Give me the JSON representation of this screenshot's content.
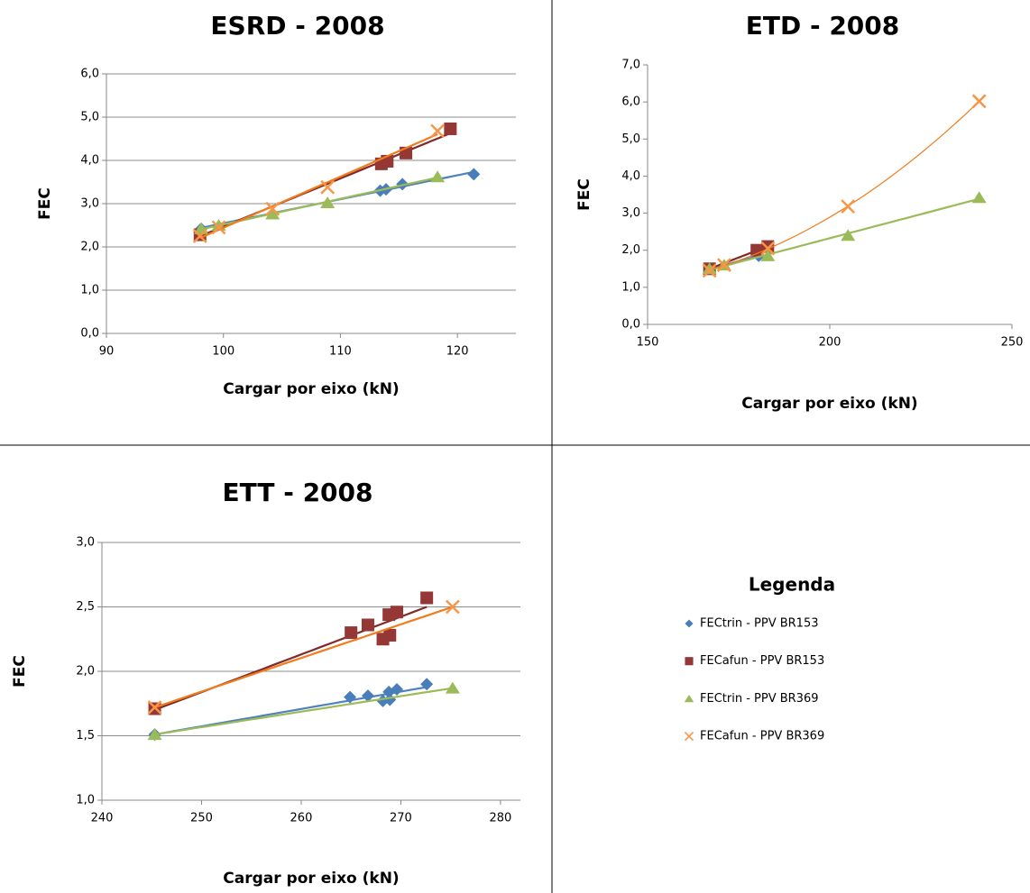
{
  "chart_data": [
    {
      "type": "scatter",
      "title": "ESRD - 2008",
      "x_label": "Cargar por eixo (kN)",
      "y_label": "FEC",
      "xlim": [
        90,
        125
      ],
      "xticks": [
        90,
        100,
        110,
        120
      ],
      "ylim": [
        0,
        6
      ],
      "yticks": [
        {
          "value": 0,
          "label": "0,0"
        },
        {
          "value": 1,
          "label": "1,0"
        },
        {
          "value": 2,
          "label": "2,0"
        },
        {
          "value": 3,
          "label": "3,0"
        },
        {
          "value": 4,
          "label": "4,0"
        },
        {
          "value": 5,
          "label": "5,0"
        },
        {
          "value": 6,
          "label": "6,0"
        }
      ],
      "grid": true,
      "series": [
        {
          "x": [
            98.1,
            113.4,
            113.9,
            115.3,
            121.4
          ],
          "values": [
            2.42,
            3.3,
            3.33,
            3.45,
            3.68
          ],
          "trendline": "linear"
        },
        {
          "x": [
            98.0,
            113.5,
            114.0,
            115.6,
            119.4
          ],
          "values": [
            2.28,
            3.92,
            3.98,
            4.17,
            4.73
          ],
          "trendline": "linear"
        },
        {
          "x": [
            98.1,
            99.6,
            104.2,
            108.9,
            118.3
          ],
          "values": [
            2.42,
            2.5,
            2.76,
            3.02,
            3.62
          ],
          "trendline": "linear"
        },
        {
          "x": [
            98.0,
            99.6,
            104.2,
            108.9,
            118.3
          ],
          "values": [
            2.25,
            2.45,
            2.88,
            3.38,
            4.68
          ],
          "trendline": "linear"
        }
      ]
    },
    {
      "type": "scatter",
      "title": "ETD - 2008",
      "x_label": "Cargar por eixo (kN)",
      "y_label": "FEC",
      "xlim": [
        150,
        250
      ],
      "xticks": [
        150,
        200,
        250
      ],
      "ylim": [
        0,
        7
      ],
      "yticks": [
        {
          "value": 0,
          "label": "0,0"
        },
        {
          "value": 1,
          "label": "1,0"
        },
        {
          "value": 2,
          "label": "2,0"
        },
        {
          "value": 3,
          "label": "3,0"
        },
        {
          "value": 4,
          "label": "4,0"
        },
        {
          "value": 5,
          "label": "5,0"
        },
        {
          "value": 6,
          "label": "6,0"
        },
        {
          "value": 7,
          "label": "7,0"
        }
      ],
      "grid": false,
      "series": [
        {
          "x": [
            167,
            180.5
          ],
          "values": [
            1.5,
            1.85
          ],
          "trendline": "linear"
        },
        {
          "x": [
            167,
            180,
            183
          ],
          "values": [
            1.5,
            2.0,
            2.1
          ],
          "trendline": "linear"
        },
        {
          "x": [
            167,
            171,
            183,
            205,
            241
          ],
          "values": [
            1.5,
            1.6,
            1.85,
            2.4,
            3.42
          ],
          "trendline": "linear"
        },
        {
          "x": [
            167,
            171,
            183,
            205,
            241
          ],
          "values": [
            1.45,
            1.6,
            2.05,
            3.18,
            6.02
          ],
          "trendline": "polynomial"
        }
      ]
    },
    {
      "type": "scatter",
      "title": "ETT - 2008",
      "x_label": "Cargar por eixo (kN)",
      "y_label": "FEC",
      "xlim": [
        240,
        282
      ],
      "xticks": [
        240,
        250,
        260,
        270,
        280
      ],
      "ylim": [
        1,
        3
      ],
      "yticks": [
        {
          "value": 1,
          "label": "1,0"
        },
        {
          "value": 1.5,
          "label": "1,5"
        },
        {
          "value": 2,
          "label": "2,0"
        },
        {
          "value": 2.5,
          "label": "2,5"
        },
        {
          "value": 3,
          "label": "3,0"
        }
      ],
      "grid": true,
      "series": [
        {
          "x": [
            245.3,
            264.9,
            266.7,
            268.2,
            268.9,
            268.8,
            269.6,
            272.6
          ],
          "values": [
            1.51,
            1.8,
            1.81,
            1.77,
            1.78,
            1.84,
            1.86,
            1.9
          ],
          "trendline": "linear"
        },
        {
          "x": [
            245.3,
            265.0,
            266.7,
            268.2,
            268.9,
            268.8,
            269.6,
            272.6
          ],
          "values": [
            1.71,
            2.3,
            2.36,
            2.25,
            2.28,
            2.44,
            2.46,
            2.57
          ],
          "trendline": "linear"
        },
        {
          "x": [
            245.3,
            275.2
          ],
          "values": [
            1.51,
            1.87
          ],
          "trendline": "linear"
        },
        {
          "x": [
            245.3,
            275.2
          ],
          "values": [
            1.72,
            2.5
          ],
          "trendline": "linear"
        }
      ]
    }
  ],
  "legend": {
    "title": "Legenda",
    "series": [
      {
        "name": "FECtrin - PPV BR153",
        "color": "#4a7ebb",
        "line": "#4f81bd",
        "marker": "diamond"
      },
      {
        "name": "FECafun - PPV BR153",
        "color": "#953735",
        "line": "#7f2a28",
        "marker": "square"
      },
      {
        "name": "FECtrin - PPV BR369",
        "color": "#9bbb59",
        "line": "#9bbb59",
        "marker": "triangle"
      },
      {
        "name": "FECafun - PPV BR369",
        "color": "#f79646",
        "line": "#f07c1e",
        "marker": "x"
      }
    ]
  }
}
